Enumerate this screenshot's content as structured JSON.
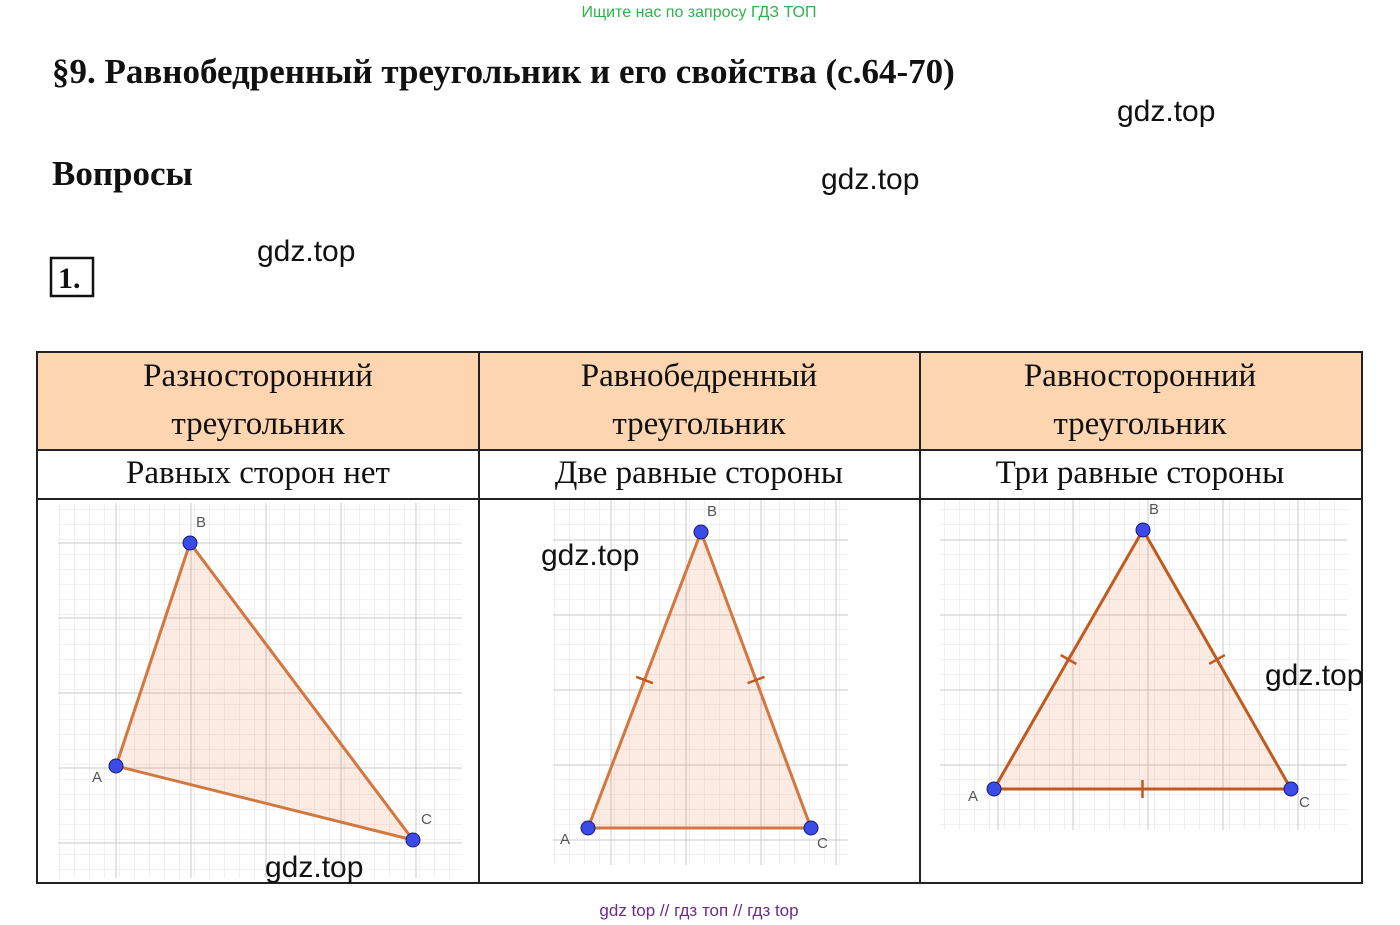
{
  "banner": "Ищите нас по запросу ГДЗ ТОП",
  "title": "§9. Равнобедренный треугольник и его свойства (с.64-70)",
  "subtitle": "Вопросы",
  "question_number": "1.",
  "watermarks": [
    "gdz.top",
    "gdz.top",
    "gdz.top",
    "gdz.top",
    "gdz.top",
    "gdz.top"
  ],
  "table": {
    "headers": [
      [
        "Разносторонний",
        "треугольник"
      ],
      [
        "Равнобедренный",
        "треугольник"
      ],
      [
        "Равносторонний",
        "треугольник"
      ]
    ],
    "descriptions": [
      "Равных сторон нет",
      "Две равные стороны",
      "Три равные стороны"
    ]
  },
  "figures": [
    {
      "points": [
        "A",
        "B",
        "C"
      ]
    },
    {
      "points": [
        "A",
        "B",
        "C"
      ]
    },
    {
      "points": [
        "A",
        "B",
        "C"
      ]
    }
  ],
  "footer": "gdz top  //  гдз топ  //  гдз top"
}
